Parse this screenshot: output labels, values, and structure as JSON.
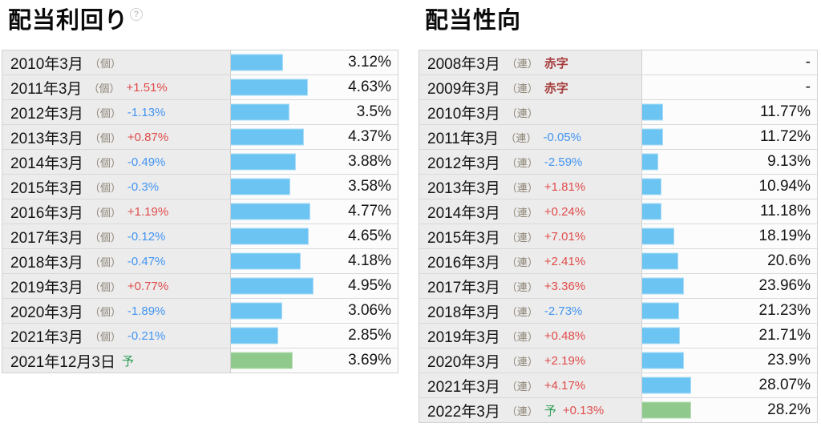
{
  "page": {
    "left_title": "配当利回り",
    "right_title": "配当性向",
    "help_icon_glyph": "?"
  },
  "colors": {
    "bar_blue": "#6cc4f2",
    "bar_green": "#8fca8c",
    "change_positive_red": "#e14b4b",
    "change_negative_blue": "#4395f2",
    "deficit_red": "#a63c3c",
    "forecast_green": "#2f9e58",
    "label_cell_bg": "#ececec"
  },
  "tables": {
    "left": {
      "title": "配当利回り",
      "bar_axis_max": 10,
      "rows": [
        {
          "year": "2010年3月",
          "scope": "（個）",
          "change": "",
          "value": "3.12%",
          "bar": 3.12,
          "bar_color": "blue"
        },
        {
          "year": "2011年3月",
          "scope": "（個）",
          "change": "+1.51%",
          "value": "4.63%",
          "bar": 4.63,
          "bar_color": "blue"
        },
        {
          "year": "2012年3月",
          "scope": "（個）",
          "change": "-1.13%",
          "value": "3.5%",
          "bar": 3.5,
          "bar_color": "blue"
        },
        {
          "year": "2013年3月",
          "scope": "（個）",
          "change": "+0.87%",
          "value": "4.37%",
          "bar": 4.37,
          "bar_color": "blue"
        },
        {
          "year": "2014年3月",
          "scope": "（個）",
          "change": "-0.49%",
          "value": "3.88%",
          "bar": 3.88,
          "bar_color": "blue"
        },
        {
          "year": "2015年3月",
          "scope": "（個）",
          "change": "-0.3%",
          "value": "3.58%",
          "bar": 3.58,
          "bar_color": "blue"
        },
        {
          "year": "2016年3月",
          "scope": "（個）",
          "change": "+1.19%",
          "value": "4.77%",
          "bar": 4.77,
          "bar_color": "blue"
        },
        {
          "year": "2017年3月",
          "scope": "（個）",
          "change": "-0.12%",
          "value": "4.65%",
          "bar": 4.65,
          "bar_color": "blue"
        },
        {
          "year": "2018年3月",
          "scope": "（個）",
          "change": "-0.47%",
          "value": "4.18%",
          "bar": 4.18,
          "bar_color": "blue"
        },
        {
          "year": "2019年3月",
          "scope": "（個）",
          "change": "+0.77%",
          "value": "4.95%",
          "bar": 4.95,
          "bar_color": "blue"
        },
        {
          "year": "2020年3月",
          "scope": "（個）",
          "change": "-1.89%",
          "value": "3.06%",
          "bar": 3.06,
          "bar_color": "blue"
        },
        {
          "year": "2021年3月",
          "scope": "（個）",
          "change": "-0.21%",
          "value": "2.85%",
          "bar": 2.85,
          "bar_color": "blue"
        },
        {
          "year": "2021年12月3日",
          "scope": "",
          "forecast": "予",
          "change": "",
          "value": "3.69%",
          "bar": 3.69,
          "bar_color": "green"
        }
      ]
    },
    "right": {
      "title": "配当性向",
      "bar_axis_max": 100,
      "rows": [
        {
          "year": "2008年3月",
          "scope": "（連）",
          "deficit": "赤字",
          "change": "",
          "value": "-",
          "bar": null
        },
        {
          "year": "2009年3月",
          "scope": "（連）",
          "deficit": "赤字",
          "change": "",
          "value": "-",
          "bar": null
        },
        {
          "year": "2010年3月",
          "scope": "（連）",
          "change": "",
          "value": "11.77%",
          "bar": 11.77,
          "bar_color": "blue"
        },
        {
          "year": "2011年3月",
          "scope": "（連）",
          "change": "-0.05%",
          "value": "11.72%",
          "bar": 11.72,
          "bar_color": "blue"
        },
        {
          "year": "2012年3月",
          "scope": "（連）",
          "change": "-2.59%",
          "value": "9.13%",
          "bar": 9.13,
          "bar_color": "blue"
        },
        {
          "year": "2013年3月",
          "scope": "（連）",
          "change": "+1.81%",
          "value": "10.94%",
          "bar": 10.94,
          "bar_color": "blue"
        },
        {
          "year": "2014年3月",
          "scope": "（連）",
          "change": "+0.24%",
          "value": "11.18%",
          "bar": 11.18,
          "bar_color": "blue"
        },
        {
          "year": "2015年3月",
          "scope": "（連）",
          "change": "+7.01%",
          "value": "18.19%",
          "bar": 18.19,
          "bar_color": "blue"
        },
        {
          "year": "2016年3月",
          "scope": "（連）",
          "change": "+2.41%",
          "value": "20.6%",
          "bar": 20.6,
          "bar_color": "blue"
        },
        {
          "year": "2017年3月",
          "scope": "（連）",
          "change": "+3.36%",
          "value": "23.96%",
          "bar": 23.96,
          "bar_color": "blue"
        },
        {
          "year": "2018年3月",
          "scope": "（連）",
          "change": "-2.73%",
          "value": "21.23%",
          "bar": 21.23,
          "bar_color": "blue"
        },
        {
          "year": "2019年3月",
          "scope": "（連）",
          "change": "+0.48%",
          "value": "21.71%",
          "bar": 21.71,
          "bar_color": "blue"
        },
        {
          "year": "2020年3月",
          "scope": "（連）",
          "change": "+2.19%",
          "value": "23.9%",
          "bar": 23.9,
          "bar_color": "blue"
        },
        {
          "year": "2021年3月",
          "scope": "（連）",
          "change": "+4.17%",
          "value": "28.07%",
          "bar": 28.07,
          "bar_color": "blue"
        },
        {
          "year": "2022年3月",
          "scope": "（連）",
          "forecast": "予",
          "change": "+0.13%",
          "value": "28.2%",
          "bar": 28.2,
          "bar_color": "green"
        }
      ]
    }
  },
  "chart_data": [
    {
      "type": "bar",
      "orientation": "horizontal",
      "title": "配当利回り",
      "categories": [
        "2010年3月",
        "2011年3月",
        "2012年3月",
        "2013年3月",
        "2014年3月",
        "2015年3月",
        "2016年3月",
        "2017年3月",
        "2018年3月",
        "2019年3月",
        "2020年3月",
        "2021年3月",
        "2021年12月3日(予)"
      ],
      "values": [
        3.12,
        4.63,
        3.5,
        4.37,
        3.88,
        3.58,
        4.77,
        4.65,
        4.18,
        4.95,
        3.06,
        2.85,
        3.69
      ],
      "yoy_change": [
        null,
        1.51,
        -1.13,
        0.87,
        -0.49,
        -0.3,
        1.19,
        -0.12,
        -0.47,
        0.77,
        -1.89,
        -0.21,
        null
      ],
      "unit": "%",
      "xlim": [
        0,
        10
      ],
      "legend_position": "none",
      "grid": false,
      "notes": "last row is forecast (予), drawn in green; others blue"
    },
    {
      "type": "bar",
      "orientation": "horizontal",
      "title": "配当性向",
      "categories": [
        "2008年3月",
        "2009年3月",
        "2010年3月",
        "2011年3月",
        "2012年3月",
        "2013年3月",
        "2014年3月",
        "2015年3月",
        "2016年3月",
        "2017年3月",
        "2018年3月",
        "2019年3月",
        "2020年3月",
        "2021年3月",
        "2022年3月(予)"
      ],
      "values": [
        null,
        null,
        11.77,
        11.72,
        9.13,
        10.94,
        11.18,
        18.19,
        20.6,
        23.96,
        21.23,
        21.71,
        23.9,
        28.07,
        28.2
      ],
      "yoy_change": [
        null,
        null,
        null,
        -0.05,
        -2.59,
        1.81,
        0.24,
        7.01,
        2.41,
        3.36,
        -2.73,
        0.48,
        2.19,
        4.17,
        0.13
      ],
      "unit": "%",
      "xlim": [
        0,
        100
      ],
      "legend_position": "none",
      "grid": false,
      "notes": "2008/2009 show 赤字 (deficit) with no bar and value '-'; 2022 row is forecast (予) drawn in green"
    }
  ]
}
